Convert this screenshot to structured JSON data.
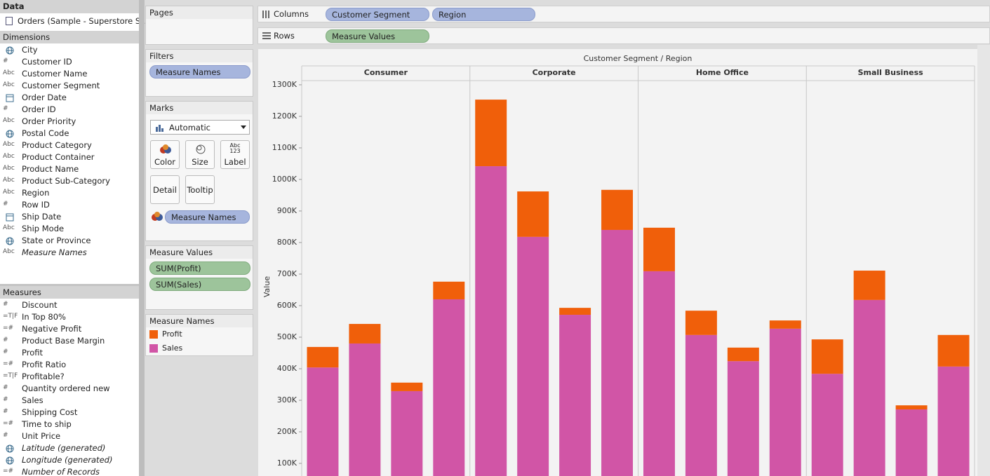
{
  "data_pane": {
    "title": "Data",
    "source": "Orders (Sample - Superstore S...",
    "dimensions_title": "Dimensions",
    "dimensions": [
      {
        "name": "City",
        "icon": "geo"
      },
      {
        "name": "Customer ID",
        "icon": "#"
      },
      {
        "name": "Customer Name",
        "icon": "Abc"
      },
      {
        "name": "Customer Segment",
        "icon": "Abc"
      },
      {
        "name": "Order Date",
        "icon": "date"
      },
      {
        "name": "Order ID",
        "icon": "#"
      },
      {
        "name": "Order Priority",
        "icon": "Abc"
      },
      {
        "name": "Postal Code",
        "icon": "geo"
      },
      {
        "name": "Product Category",
        "icon": "Abc"
      },
      {
        "name": "Product Container",
        "icon": "Abc"
      },
      {
        "name": "Product Name",
        "icon": "Abc"
      },
      {
        "name": "Product Sub-Category",
        "icon": "Abc"
      },
      {
        "name": "Region",
        "icon": "Abc"
      },
      {
        "name": "Row ID",
        "icon": "#"
      },
      {
        "name": "Ship Date",
        "icon": "date"
      },
      {
        "name": "Ship Mode",
        "icon": "Abc"
      },
      {
        "name": "State or Province",
        "icon": "geo"
      },
      {
        "name": "Measure Names",
        "icon": "Abc",
        "italic": true
      }
    ],
    "measures_title": "Measures",
    "measures": [
      {
        "name": "Discount",
        "icon": "#"
      },
      {
        "name": "In Top 80%",
        "icon": "=T|F"
      },
      {
        "name": "Negative Profit",
        "icon": "=#"
      },
      {
        "name": "Product Base Margin",
        "icon": "#"
      },
      {
        "name": "Profit",
        "icon": "#"
      },
      {
        "name": "Profit Ratio",
        "icon": "=#"
      },
      {
        "name": "Profitable?",
        "icon": "=T|F"
      },
      {
        "name": "Quantity ordered new",
        "icon": "#"
      },
      {
        "name": "Sales",
        "icon": "#"
      },
      {
        "name": "Shipping Cost",
        "icon": "#"
      },
      {
        "name": "Time to ship",
        "icon": "=#"
      },
      {
        "name": "Unit Price",
        "icon": "#"
      },
      {
        "name": "Latitude (generated)",
        "icon": "geo",
        "italic": true
      },
      {
        "name": "Longitude (generated)",
        "icon": "geo",
        "italic": true
      },
      {
        "name": "Number of Records",
        "icon": "=#",
        "italic": true
      }
    ]
  },
  "shelves": {
    "pages": "Pages",
    "columns_label": "Columns",
    "columns": [
      "Customer Segment",
      "Region"
    ],
    "rows_label": "Rows",
    "rows": [
      "Measure Values"
    ]
  },
  "filters": {
    "title": "Filters",
    "pills": [
      "Measure Names"
    ]
  },
  "marks": {
    "title": "Marks",
    "mark_type": "Automatic",
    "buttons": [
      "Color",
      "Size",
      "Label",
      "Detail",
      "Tooltip"
    ],
    "label_icon": [
      "Abc",
      "123"
    ],
    "color_pill": "Measure Names"
  },
  "measure_values": {
    "title": "Measure Values",
    "pills": [
      "SUM(Profit)",
      "SUM(Sales)"
    ]
  },
  "legend": {
    "title": "Measure Names"
  },
  "chart_data": {
    "type": "stacked_bar",
    "title": "Customer Segment  /  Region",
    "y_label": "Value",
    "panels": [
      "Consumer",
      "Corporate",
      "Home Office",
      "Small Business"
    ],
    "categories": [
      null,
      null,
      null,
      null,
      null,
      null,
      null,
      null,
      null,
      null,
      null,
      null,
      null,
      null,
      null,
      null
    ],
    "series": [
      {
        "name": "Sales",
        "color": "#d155a6",
        "values": [
          404000,
          480000,
          329000,
          620000,
          1042000,
          818000,
          571000,
          840000,
          709000,
          507000,
          424000,
          527000,
          384000,
          618000,
          271000,
          407000
        ]
      },
      {
        "name": "Profit",
        "color": "#f05f0a",
        "values": [
          65000,
          62000,
          27000,
          56000,
          211000,
          144000,
          22000,
          127000,
          138000,
          77000,
          43000,
          26000,
          109000,
          93000,
          13000,
          100000
        ]
      }
    ],
    "ylim": [
      60000,
      1311000
    ],
    "yticks": [
      {
        "value": 100000,
        "label": "100K"
      },
      {
        "value": 200000,
        "label": "200K"
      },
      {
        "value": 300000,
        "label": "300K"
      },
      {
        "value": 400000,
        "label": "400K"
      },
      {
        "value": 500000,
        "label": "500K"
      },
      {
        "value": 600000,
        "label": "600K"
      },
      {
        "value": 700000,
        "label": "700K"
      },
      {
        "value": 800000,
        "label": "800K"
      },
      {
        "value": 900000,
        "label": "900K"
      },
      {
        "value": 1000000,
        "label": "1000K"
      },
      {
        "value": 1100000,
        "label": "1100K"
      },
      {
        "value": 1200000,
        "label": "1200K"
      },
      {
        "value": 1300000,
        "label": "1300K"
      }
    ],
    "legend_order": [
      1,
      0
    ]
  }
}
